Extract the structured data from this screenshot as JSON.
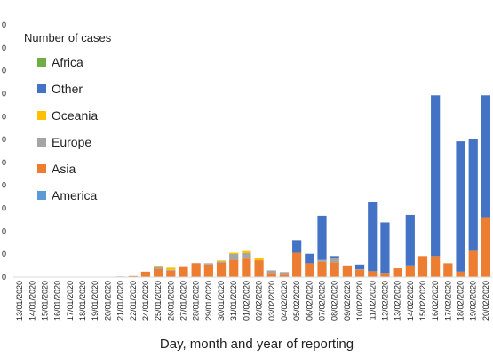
{
  "chart_data": {
    "type": "bar",
    "stacked": true,
    "xlabel": "Day, month and year of reporting",
    "legend_title": "Number of cases",
    "legend_placement": "top-left",
    "ylim": [
      0,
      1200
    ],
    "y_ticks": [
      "0",
      "0",
      "0",
      "0",
      "0",
      "0",
      "0",
      "0",
      "0",
      "0",
      "0",
      "0"
    ],
    "categories": [
      "13/01/2020",
      "14/01/2020",
      "15/01/2020",
      "16/01/2020",
      "17/01/2020",
      "18/01/2020",
      "19/01/2020",
      "20/01/2020",
      "21/01/2020",
      "22/01/2020",
      "24/01/2020",
      "25/01/2020",
      "26/01/2020",
      "27/01/2020",
      "28/01/2020",
      "29/01/2020",
      "30/01/2020",
      "31/01/2020",
      "01/02/2020",
      "02/02/2020",
      "03/02/2020",
      "04/02/2020",
      "05/02/2020",
      "06/02/2020",
      "07/02/2020",
      "08/02/2020",
      "09/02/2020",
      "10/02/2020",
      "11/02/2020",
      "12/02/2020",
      "13/02/2020",
      "14/02/2020",
      "15/02/2020",
      "16/02/2020",
      "17/02/2020",
      "18/02/2020",
      "19/02/2020",
      "20/02/2020"
    ],
    "series": [
      {
        "name": "America",
        "color": "#5B9BD5",
        "values": [
          0,
          0,
          0,
          0,
          0,
          0,
          0,
          0,
          0,
          0,
          0,
          2,
          0,
          2,
          0,
          0,
          0,
          2,
          2,
          0,
          0,
          0,
          0,
          0,
          0,
          0,
          0,
          0,
          0,
          0,
          0,
          0,
          0,
          0,
          0,
          0,
          0,
          0
        ]
      },
      {
        "name": "Asia",
        "color": "#ED7D31",
        "values": [
          1,
          0,
          1,
          1,
          1,
          0,
          0,
          1,
          3,
          5,
          26,
          36,
          30,
          46,
          66,
          60,
          68,
          80,
          86,
          80,
          20,
          12,
          116,
          66,
          72,
          70,
          52,
          34,
          28,
          20,
          42,
          56,
          100,
          100,
          66,
          26,
          125,
          285
        ]
      },
      {
        "name": "Europe",
        "color": "#A5A5A5",
        "values": [
          0,
          0,
          0,
          0,
          0,
          0,
          0,
          0,
          0,
          0,
          0,
          10,
          5,
          0,
          1,
          6,
          7,
          28,
          26,
          0,
          12,
          12,
          0,
          0,
          10,
          20,
          4,
          4,
          0,
          0,
          0,
          0,
          0,
          0,
          0,
          0,
          0,
          0
        ]
      },
      {
        "name": "Oceania",
        "color": "#FFC000",
        "values": [
          0,
          0,
          0,
          0,
          0,
          0,
          0,
          0,
          0,
          0,
          0,
          4,
          10,
          0,
          0,
          0,
          4,
          6,
          10,
          10,
          0,
          0,
          0,
          0,
          0,
          0,
          0,
          0,
          0,
          0,
          0,
          0,
          0,
          0,
          0,
          0,
          0,
          0
        ]
      },
      {
        "name": "Other",
        "color": "#4472C4",
        "values": [
          0,
          0,
          0,
          0,
          0,
          0,
          0,
          0,
          0,
          0,
          0,
          0,
          0,
          0,
          0,
          0,
          0,
          0,
          0,
          0,
          0,
          0,
          60,
          45,
          210,
          10,
          0,
          22,
          330,
          240,
          0,
          240,
          0,
          765,
          0,
          620,
          530,
          580
        ]
      },
      {
        "name": "Africa",
        "color": "#70AD47",
        "values": [
          0,
          0,
          0,
          0,
          0,
          0,
          0,
          0,
          0,
          0,
          0,
          0,
          0,
          0,
          0,
          0,
          0,
          0,
          0,
          0,
          0,
          0,
          0,
          0,
          0,
          0,
          0,
          0,
          0,
          0,
          0,
          0,
          0,
          0,
          0,
          0,
          0,
          0
        ]
      }
    ],
    "legend_order": [
      "Africa",
      "Other",
      "Oceania",
      "Europe",
      "Asia",
      "America"
    ]
  }
}
